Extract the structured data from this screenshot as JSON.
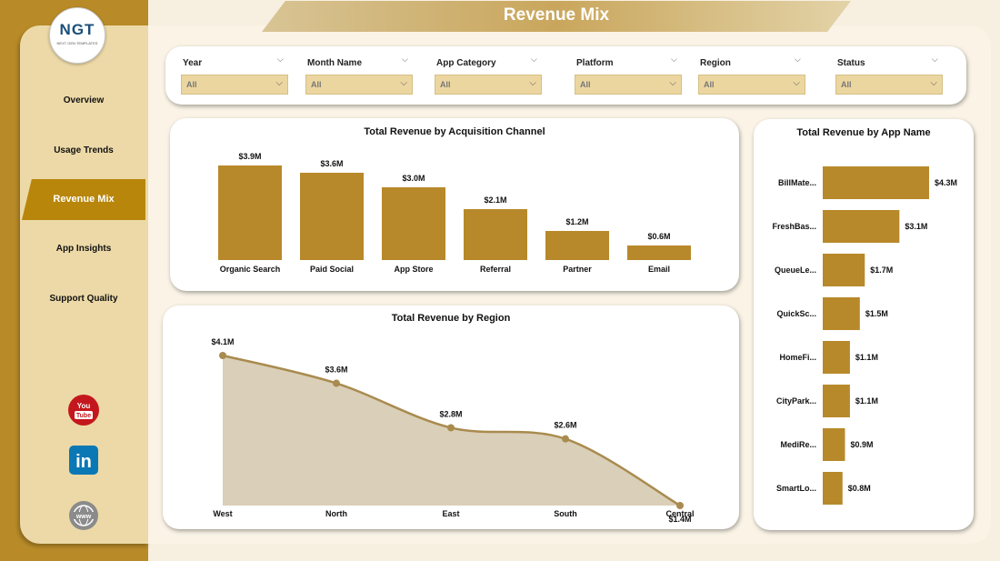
{
  "page_title": "Revenue Mix",
  "logo": {
    "text": "NGT",
    "subtext": "NEXT GEN TEMPLATES"
  },
  "nav": [
    {
      "label": "Overview",
      "active": false
    },
    {
      "label": "Usage Trends",
      "active": false
    },
    {
      "label": "Revenue Mix",
      "active": true
    },
    {
      "label": "App Insights",
      "active": false
    },
    {
      "label": "Support Quality",
      "active": false
    }
  ],
  "social": {
    "youtube": "You Tube",
    "linkedin": "in",
    "web": "www"
  },
  "filters": [
    {
      "label": "Year",
      "value": "All"
    },
    {
      "label": "Month Name",
      "value": "All"
    },
    {
      "label": "App Category",
      "value": "All"
    },
    {
      "label": "Platform",
      "value": "All"
    },
    {
      "label": "Region",
      "value": "All"
    },
    {
      "label": "Status",
      "value": "All"
    }
  ],
  "colors": {
    "accent": "#b8860b",
    "bar": "#b8892a",
    "area": "#dacfb8",
    "line": "#a98b4f"
  },
  "chart_data": [
    {
      "type": "bar",
      "title": "Total Revenue by Acquisition Channel",
      "categories": [
        "Organic Search",
        "Paid Social",
        "App Store",
        "Referral",
        "Partner",
        "Email"
      ],
      "values": [
        3.9,
        3.6,
        3.0,
        2.1,
        1.2,
        0.6
      ],
      "labels": [
        "$3.9M",
        "$3.6M",
        "$3.0M",
        "$2.1M",
        "$1.2M",
        "$0.6M"
      ]
    },
    {
      "type": "area",
      "title": "Total Revenue by Region",
      "categories": [
        "West",
        "North",
        "East",
        "South",
        "Central"
      ],
      "values": [
        4.1,
        3.6,
        2.8,
        2.6,
        1.4
      ],
      "labels": [
        "$4.1M",
        "$3.6M",
        "$2.8M",
        "$2.6M",
        "$1.4M"
      ]
    },
    {
      "type": "bar",
      "orientation": "horizontal",
      "title": "Total Revenue by App Name",
      "categories": [
        "BillMate...",
        "FreshBas...",
        "QueueLe...",
        "QuickSc...",
        "HomeFi...",
        "CityPark...",
        "MediRe...",
        "SmartLo..."
      ],
      "values": [
        4.3,
        3.1,
        1.7,
        1.5,
        1.1,
        1.1,
        0.9,
        0.8
      ],
      "labels": [
        "$4.3M",
        "$3.1M",
        "$1.7M",
        "$1.5M",
        "$1.1M",
        "$1.1M",
        "$0.9M",
        "$0.8M"
      ]
    }
  ]
}
